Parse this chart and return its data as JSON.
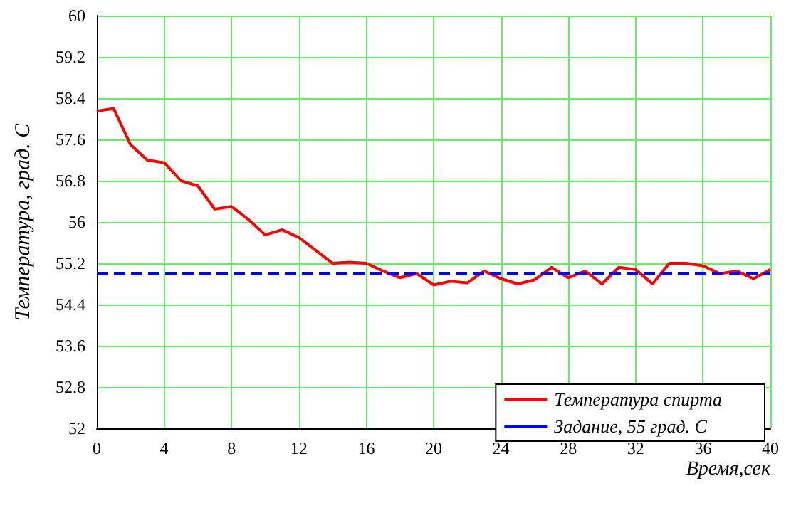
{
  "chart_data": {
    "type": "line",
    "xlabel": "Время,сек",
    "ylabel": "Температура, град. С",
    "x": [
      0,
      1,
      2,
      3,
      4,
      5,
      6,
      7,
      8,
      9,
      10,
      11,
      12,
      13,
      14,
      15,
      16,
      17,
      18,
      19,
      20,
      21,
      22,
      23,
      24,
      25,
      26,
      27,
      28,
      29,
      30,
      31,
      32,
      33,
      34,
      35,
      36,
      37,
      38,
      39,
      40
    ],
    "series": [
      {
        "name": "Температура спирта",
        "color": "#ff0000",
        "line_style": "solid",
        "values": [
          58.15,
          58.2,
          57.5,
          57.2,
          57.15,
          56.8,
          56.7,
          56.25,
          56.3,
          56.05,
          55.75,
          55.85,
          55.7,
          55.45,
          55.2,
          55.22,
          55.2,
          55.05,
          54.92,
          55.0,
          54.78,
          54.85,
          54.82,
          55.05,
          54.9,
          54.8,
          54.88,
          55.12,
          54.92,
          55.05,
          54.8,
          55.12,
          55.08,
          54.8,
          55.2,
          55.2,
          55.15,
          55.0,
          55.05,
          54.9,
          55.08
        ]
      },
      {
        "name": "Задание, 55 град. С",
        "color": "#0000ff",
        "line_style": "dashed",
        "x": [
          0,
          40
        ],
        "values": [
          55,
          55
        ]
      }
    ],
    "xlim": [
      0,
      40
    ],
    "xticks": [
      0,
      4,
      8,
      12,
      16,
      20,
      24,
      28,
      32,
      36,
      40
    ],
    "ylim": [
      52,
      60
    ],
    "yticks": [
      52,
      52.8,
      53.6,
      54.4,
      55.2,
      56,
      56.8,
      57.6,
      58.4,
      59.2,
      60
    ],
    "grid": true,
    "legend": "bottom right",
    "marker": "none"
  }
}
